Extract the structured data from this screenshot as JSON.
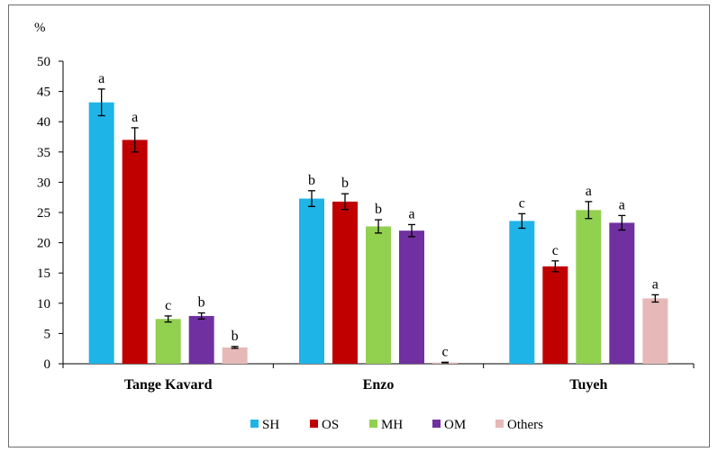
{
  "chart_data": {
    "type": "bar",
    "ylabel": "%",
    "ylim": [
      0,
      50
    ],
    "yticks": [
      0,
      5,
      10,
      15,
      20,
      25,
      30,
      35,
      40,
      45,
      50
    ],
    "categories": [
      "Tange Kavard",
      "Enzo",
      "Tuyeh"
    ],
    "legend_position": "bottom",
    "grid": false,
    "series": [
      {
        "name": "SH",
        "color": "#1fb4e8",
        "values": [
          43.2,
          27.3,
          23.6
        ],
        "errors": [
          2.2,
          1.3,
          1.2
        ],
        "labels": [
          "a",
          "b",
          "c"
        ]
      },
      {
        "name": "OS",
        "color": "#c00000",
        "values": [
          37.0,
          26.8,
          16.1
        ],
        "errors": [
          2.0,
          1.3,
          0.9
        ],
        "labels": [
          "a",
          "b",
          "c"
        ]
      },
      {
        "name": "MH",
        "color": "#92d050",
        "values": [
          7.4,
          22.7,
          25.4
        ],
        "errors": [
          0.5,
          1.1,
          1.4
        ],
        "labels": [
          "c",
          "b",
          "a"
        ]
      },
      {
        "name": "OM",
        "color": "#7030a0",
        "values": [
          7.9,
          22.0,
          23.3
        ],
        "errors": [
          0.5,
          1.0,
          1.2
        ],
        "labels": [
          "b",
          "a",
          "a"
        ]
      },
      {
        "name": "Others",
        "color": "#e6b9b8",
        "values": [
          2.7,
          0.2,
          10.8
        ],
        "errors": [
          0.15,
          0.05,
          0.6
        ],
        "labels": [
          "b",
          "c",
          "a"
        ]
      }
    ]
  }
}
